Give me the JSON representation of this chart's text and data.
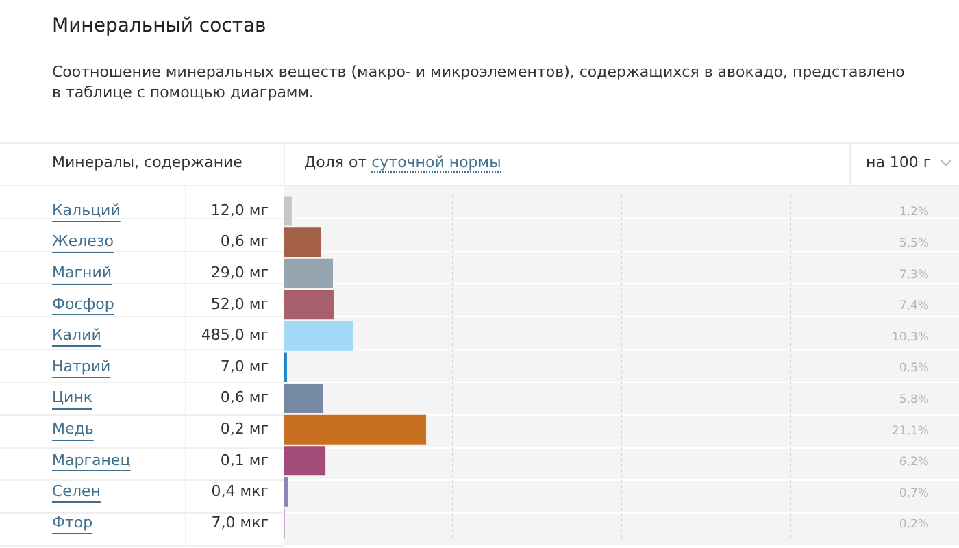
{
  "chart_data": {
    "type": "bar",
    "orientation": "horizontal",
    "title": "Минеральный состав",
    "subtitle": "Соотношение минеральных веществ (макро- и микроэлементов), содержащихся в авокадо, представлено в таблице с помощью диаграмм.",
    "ylabel": "Минералы, содержание",
    "xlabel": "Доля от суточной нормы",
    "categories": [
      "Кальций",
      "Железо",
      "Магний",
      "Фосфор",
      "Калий",
      "Натрий",
      "Цинк",
      "Медь",
      "Марганец",
      "Селен",
      "Фтор"
    ],
    "values": [
      1.2,
      5.5,
      7.3,
      7.4,
      10.3,
      0.5,
      5.8,
      21.1,
      6.2,
      0.7,
      0.2
    ],
    "colors": [
      "#c6c6c6",
      "#a5604a",
      "#95a6b1",
      "#a8606d",
      "#a3d9f6",
      "#1e86cc",
      "#7689a3",
      "#c8701f",
      "#a44c79",
      "#8a86b9",
      "#c4a8cc"
    ],
    "value_labels": [
      "1,2%",
      "5,5%",
      "7,3%",
      "7,4%",
      "10,3%",
      "0,5%",
      "5,8%",
      "21,1%",
      "6,2%",
      "0,7%",
      "0,2%"
    ],
    "xlim": [
      0,
      100
    ],
    "xticks": [
      {
        "value": 25,
        "label": null
      },
      {
        "value": 50,
        "label": null
      },
      {
        "value": 75,
        "label": null
      }
    ],
    "grid": "x",
    "tick_labels": "y",
    "annotations": [
      "12,0 мг",
      "0,6 мг",
      "29,0 мг",
      "52,0 мг",
      "485,0 мг",
      "7,0 мг",
      "0,6 мг",
      "0,2 мг",
      "0,1 мг",
      "0,4 мкг",
      "7,0 мкг",
      "на 100 г"
    ]
  }
}
